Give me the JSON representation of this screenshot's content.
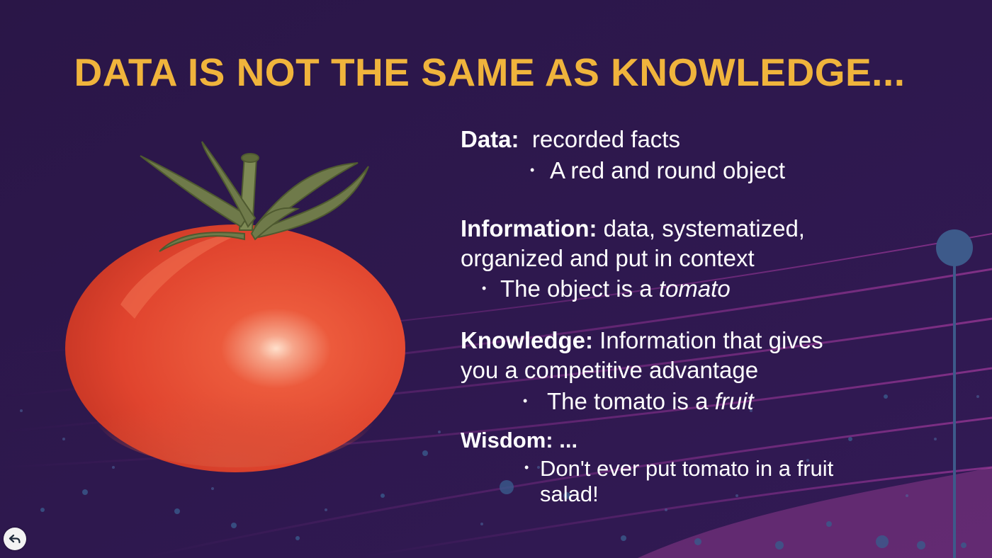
{
  "slide": {
    "title": "DATA IS NOT THE SAME AS KNOWLEDGE...",
    "accent_color": "#f0b43c",
    "background_color": "#2b1749"
  },
  "sections": {
    "data": {
      "label": "Data:",
      "text": "recorded facts",
      "bullet": "A red and round object"
    },
    "information": {
      "label": "Information:",
      "text": "data, systematized,",
      "text_line2": "organized and put in context",
      "bullet_prefix": "The object is a ",
      "bullet_emphasis": "tomato"
    },
    "knowledge": {
      "label": "Knowledge:",
      "text": "Information that gives",
      "text_line2": "you a competitive advantage",
      "bullet_prefix": "The tomato is a ",
      "bullet_emphasis": "fruit"
    },
    "wisdom": {
      "label": "Wisdom: ...",
      "bullet_line1": "Don't ever put tomato in a fruit",
      "bullet_line2": "salad!"
    }
  },
  "icons": {
    "back": "back-arrow-icon",
    "image": "tomato-image"
  }
}
